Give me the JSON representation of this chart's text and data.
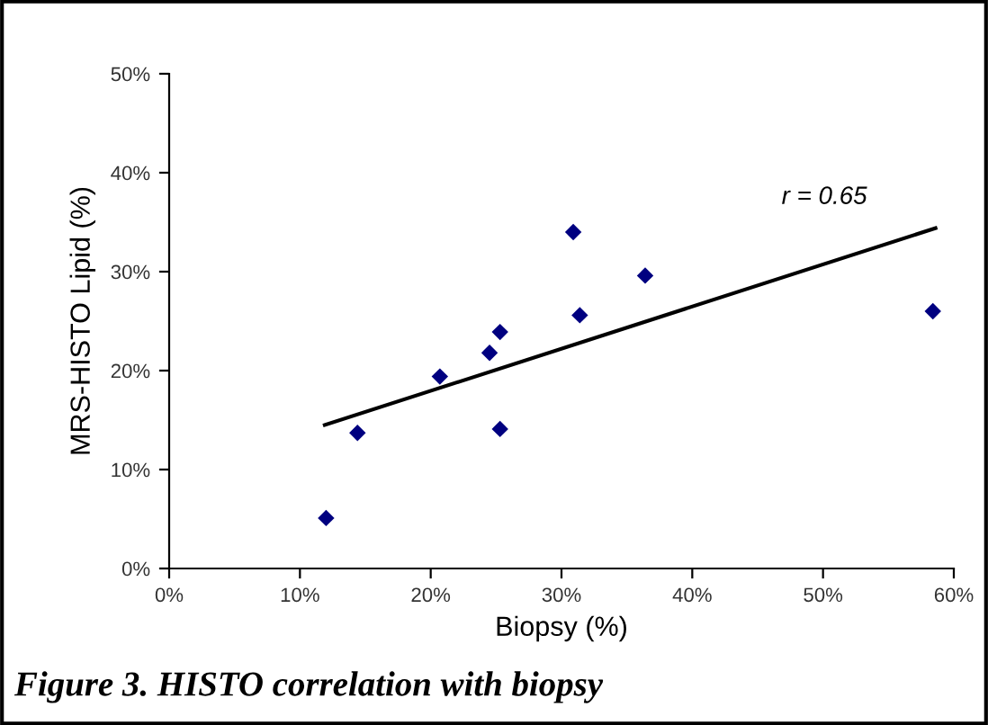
{
  "chart_data": {
    "type": "scatter",
    "xlabel": "Biopsy (%)",
    "ylabel": "MRS-HISTO Lipid (%)",
    "grid": false,
    "series": [
      {
        "marker": "diamond",
        "color": "#000080",
        "x": [
          12.0,
          14.4,
          20.7,
          24.5,
          25.3,
          25.3,
          30.9,
          31.4,
          36.4,
          58.4
        ],
        "values": [
          5.1,
          13.7,
          19.4,
          21.8,
          23.9,
          14.1,
          34.0,
          25.6,
          29.6,
          26.0
        ]
      },
      {
        "type": "line",
        "marker": "none",
        "color": "#000000",
        "x": [
          11.9,
          58.6
        ],
        "values": [
          14.5,
          34.4
        ]
      }
    ],
    "xlim": [
      0,
      60
    ],
    "xticks": [
      {
        "value": 0,
        "label": "0%"
      },
      {
        "value": 10,
        "label": "10%"
      },
      {
        "value": 20,
        "label": "20%"
      },
      {
        "value": 30,
        "label": "30%"
      },
      {
        "value": 40,
        "label": "40%"
      },
      {
        "value": 50,
        "label": "50%"
      },
      {
        "value": 60,
        "label": "60%"
      }
    ],
    "ylim": [
      0,
      50
    ],
    "yticks": [
      {
        "value": 0,
        "label": "0%"
      },
      {
        "value": 10,
        "label": "10%"
      },
      {
        "value": 20,
        "label": "20%"
      },
      {
        "value": 30,
        "label": "30%"
      },
      {
        "value": 40,
        "label": "40%"
      },
      {
        "value": 50,
        "label": "50%"
      }
    ],
    "annotations": [
      "r = 0.65",
      "Figure 3. HISTO correlation with biopsy"
    ]
  }
}
